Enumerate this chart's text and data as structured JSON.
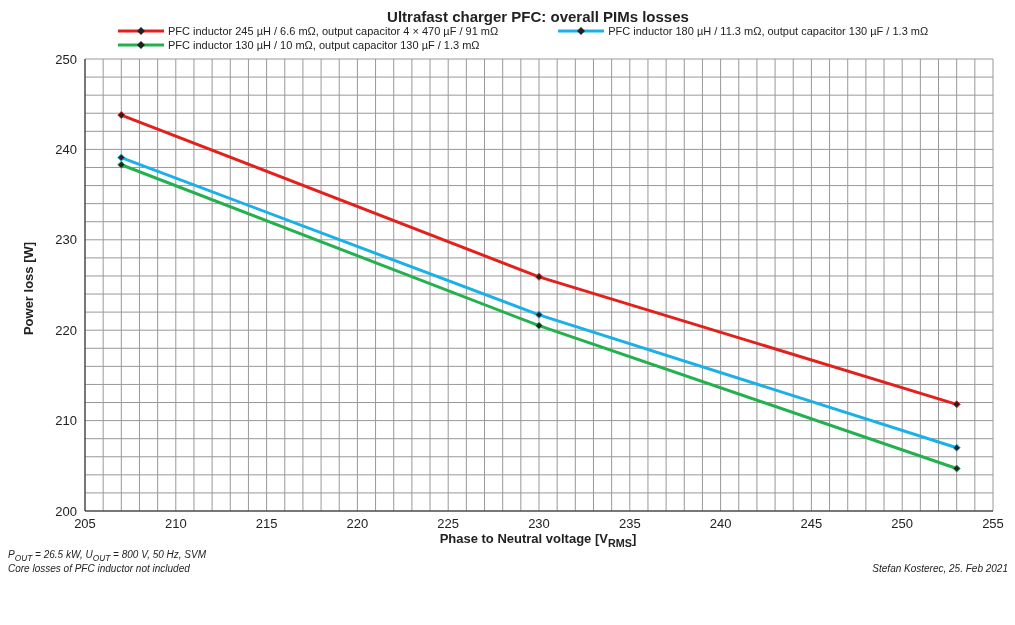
{
  "chart_data": {
    "type": "line",
    "title": "Ultrafast charger PFC: overall PIMs losses",
    "xlabel": "Phase to Neutral voltage [V$_{RMS}$]",
    "ylabel": "Power loss [W]",
    "x": [
      207,
      230,
      253
    ],
    "series": [
      {
        "name": "PFC inductor 245 µH / 6.6 mΩ, output capacitor 4 × 470 µF / 91 mΩ",
        "color": "#e3211c",
        "values": [
          243.8,
          225.9,
          211.8
        ]
      },
      {
        "name": "PFC inductor 180 µH / 11.3 mΩ, output capacitor 130 µF / 1.3 mΩ",
        "color": "#1ab0e8",
        "values": [
          239.1,
          221.7,
          207.0
        ]
      },
      {
        "name": "PFC inductor 130 µH / 10 mΩ, output capacitor 130 µF / 1.3 mΩ",
        "color": "#22b14c",
        "values": [
          238.3,
          220.5,
          204.7
        ]
      }
    ],
    "xlim": [
      205,
      255
    ],
    "xticks": [
      205,
      {
        "value": 206,
        "label": null
      },
      {
        "value": 207,
        "label": null
      },
      {
        "value": 208,
        "label": null
      },
      {
        "value": 209,
        "label": null
      },
      210,
      {
        "value": 211,
        "label": null
      },
      {
        "value": 212,
        "label": null
      },
      {
        "value": 213,
        "label": null
      },
      {
        "value": 214,
        "label": null
      },
      215,
      {
        "value": 216,
        "label": null
      },
      {
        "value": 217,
        "label": null
      },
      {
        "value": 218,
        "label": null
      },
      {
        "value": 219,
        "label": null
      },
      220,
      {
        "value": 221,
        "label": null
      },
      {
        "value": 222,
        "label": null
      },
      {
        "value": 223,
        "label": null
      },
      {
        "value": 224,
        "label": null
      },
      225,
      {
        "value": 226,
        "label": null
      },
      {
        "value": 227,
        "label": null
      },
      {
        "value": 228,
        "label": null
      },
      {
        "value": 229,
        "label": null
      },
      230,
      {
        "value": 231,
        "label": null
      },
      {
        "value": 232,
        "label": null
      },
      {
        "value": 233,
        "label": null
      },
      {
        "value": 234,
        "label": null
      },
      235,
      {
        "value": 236,
        "label": null
      },
      {
        "value": 237,
        "label": null
      },
      {
        "value": 238,
        "label": null
      },
      {
        "value": 239,
        "label": null
      },
      240,
      {
        "value": 241,
        "label": null
      },
      {
        "value": 242,
        "label": null
      },
      {
        "value": 243,
        "label": null
      },
      {
        "value": 244,
        "label": null
      },
      245,
      {
        "value": 246,
        "label": null
      },
      {
        "value": 247,
        "label": null
      },
      {
        "value": 248,
        "label": null
      },
      {
        "value": 249,
        "label": null
      },
      250,
      {
        "value": 251,
        "label": null
      },
      {
        "value": 252,
        "label": null
      },
      {
        "value": 253,
        "label": null
      },
      {
        "value": 254,
        "label": null
      },
      255
    ],
    "ylim": [
      200,
      250
    ],
    "yticks": [
      200,
      {
        "value": 202,
        "label": null
      },
      {
        "value": 204,
        "label": null
      },
      {
        "value": 206,
        "label": null
      },
      {
        "value": 208,
        "label": null
      },
      210,
      {
        "value": 212,
        "label": null
      },
      {
        "value": 214,
        "label": null
      },
      {
        "value": 216,
        "label": null
      },
      {
        "value": 218,
        "label": null
      },
      220,
      {
        "value": 222,
        "label": null
      },
      {
        "value": 224,
        "label": null
      },
      {
        "value": 226,
        "label": null
      },
      {
        "value": 228,
        "label": null
      },
      230,
      {
        "value": 232,
        "label": null
      },
      {
        "value": 234,
        "label": null
      },
      {
        "value": 236,
        "label": null
      },
      {
        "value": 238,
        "label": null
      },
      240,
      {
        "value": 242,
        "label": null
      },
      {
        "value": 244,
        "label": null
      },
      {
        "value": 246,
        "label": null
      },
      {
        "value": 248,
        "label": null
      },
      250
    ],
    "grid": true,
    "legend": "top",
    "marker": "diamond",
    "line_style": "solid",
    "annotations": [
      "P$_{OUT}$ = 26.5 kW, U$_{OUT}$ = 800 V, 50 Hz, SVM",
      "Core losses of PFC inductor not included",
      "Stefan Kosterec, 25. Feb 2021"
    ]
  }
}
